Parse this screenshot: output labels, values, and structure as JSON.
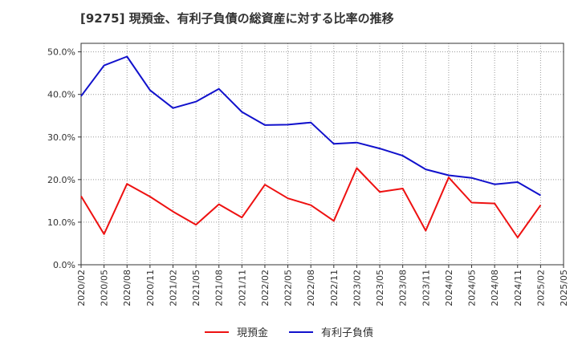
{
  "chart_data": {
    "type": "line",
    "title": "[9275]  現預金、有利子負債の総資産に対する比率の推移",
    "categories": [
      "2020/02",
      "2020/05",
      "2020/08",
      "2020/11",
      "2021/02",
      "2021/05",
      "2021/08",
      "2021/11",
      "2022/02",
      "2022/05",
      "2022/08",
      "2022/11",
      "2023/02",
      "2023/05",
      "2023/08",
      "2023/11",
      "2024/02",
      "2024/05",
      "2024/08",
      "2024/11",
      "2025/02",
      "2025/05"
    ],
    "ylim": [
      0,
      52
    ],
    "yticks": [
      0,
      10,
      20,
      30,
      40,
      50
    ],
    "ytick_labels": [
      "0.0%",
      "10.0%",
      "20.0%",
      "30.0%",
      "40.0%",
      "50.0%"
    ],
    "series": [
      {
        "name": "現預金",
        "color": "#ee1111",
        "values": [
          16.1,
          7.2,
          19.0,
          16.0,
          12.5,
          9.4,
          14.2,
          11.1,
          18.8,
          15.6,
          14.0,
          10.3,
          22.7,
          17.1,
          17.9,
          8.0,
          20.5,
          14.6,
          14.4,
          6.4,
          14.0,
          null
        ]
      },
      {
        "name": "有利子負債",
        "color": "#1111cc",
        "values": [
          39.6,
          46.8,
          48.9,
          41.0,
          36.8,
          38.3,
          41.3,
          35.9,
          32.8,
          32.9,
          33.4,
          28.4,
          28.7,
          27.3,
          25.6,
          22.4,
          21.0,
          20.4,
          18.9,
          19.4,
          16.3,
          null
        ]
      }
    ],
    "legend": {
      "position": "bottom"
    },
    "grid": true
  }
}
